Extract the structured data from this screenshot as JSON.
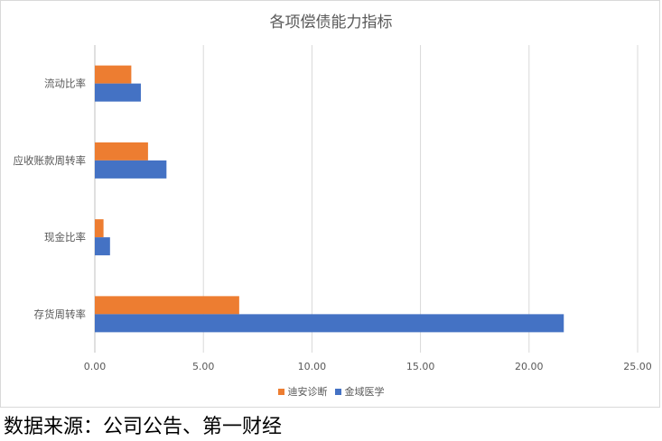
{
  "chart_data": {
    "type": "bar",
    "orientation": "horizontal",
    "title": "各项偿债能力指标",
    "categories": [
      "流动比率",
      "应收账款周转率",
      "现金比率",
      "存货周转率"
    ],
    "series": [
      {
        "name": "迪安诊断",
        "color": "#ED7D31",
        "values": [
          1.68,
          2.45,
          0.4,
          6.65
        ]
      },
      {
        "name": "金域医学",
        "color": "#4472C4",
        "values": [
          2.12,
          3.3,
          0.7,
          21.6
        ]
      }
    ],
    "xlim": [
      0,
      25
    ],
    "xticks": [
      "0.00",
      "5.00",
      "10.00",
      "15.00",
      "20.00",
      "25.00"
    ],
    "grid": true,
    "legend_position": "bottom"
  },
  "source_note": "数据来源：公司公告、第一财经"
}
